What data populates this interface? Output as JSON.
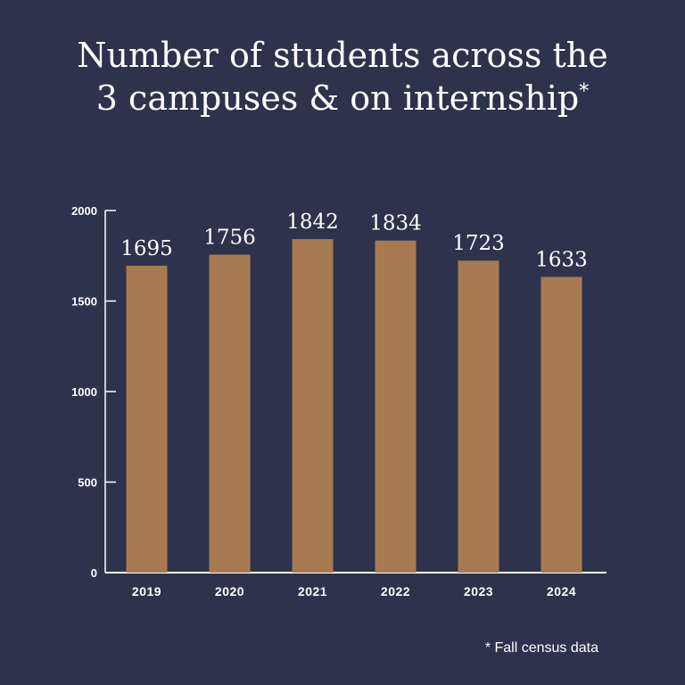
{
  "title": {
    "line1": "Number of students across the",
    "line2": "3 campuses & on internship",
    "asterisk": "*"
  },
  "footnote": "* Fall census data",
  "colors": {
    "background": "#2d334d",
    "bar": "#a87a52",
    "text": "#ffffff",
    "axis": "#ffffff"
  },
  "chart_data": {
    "type": "bar",
    "title": "Number of students across the 3 campuses & on internship*",
    "categories": [
      "2019",
      "2020",
      "2021",
      "2022",
      "2023",
      "2024"
    ],
    "values": [
      1695,
      1756,
      1842,
      1834,
      1723,
      1633
    ],
    "ylim": [
      0,
      2000
    ],
    "yticks": [
      0,
      500,
      1000,
      1500,
      2000
    ],
    "xlabel": "",
    "ylabel": "",
    "grid": false,
    "data_labels": true
  }
}
